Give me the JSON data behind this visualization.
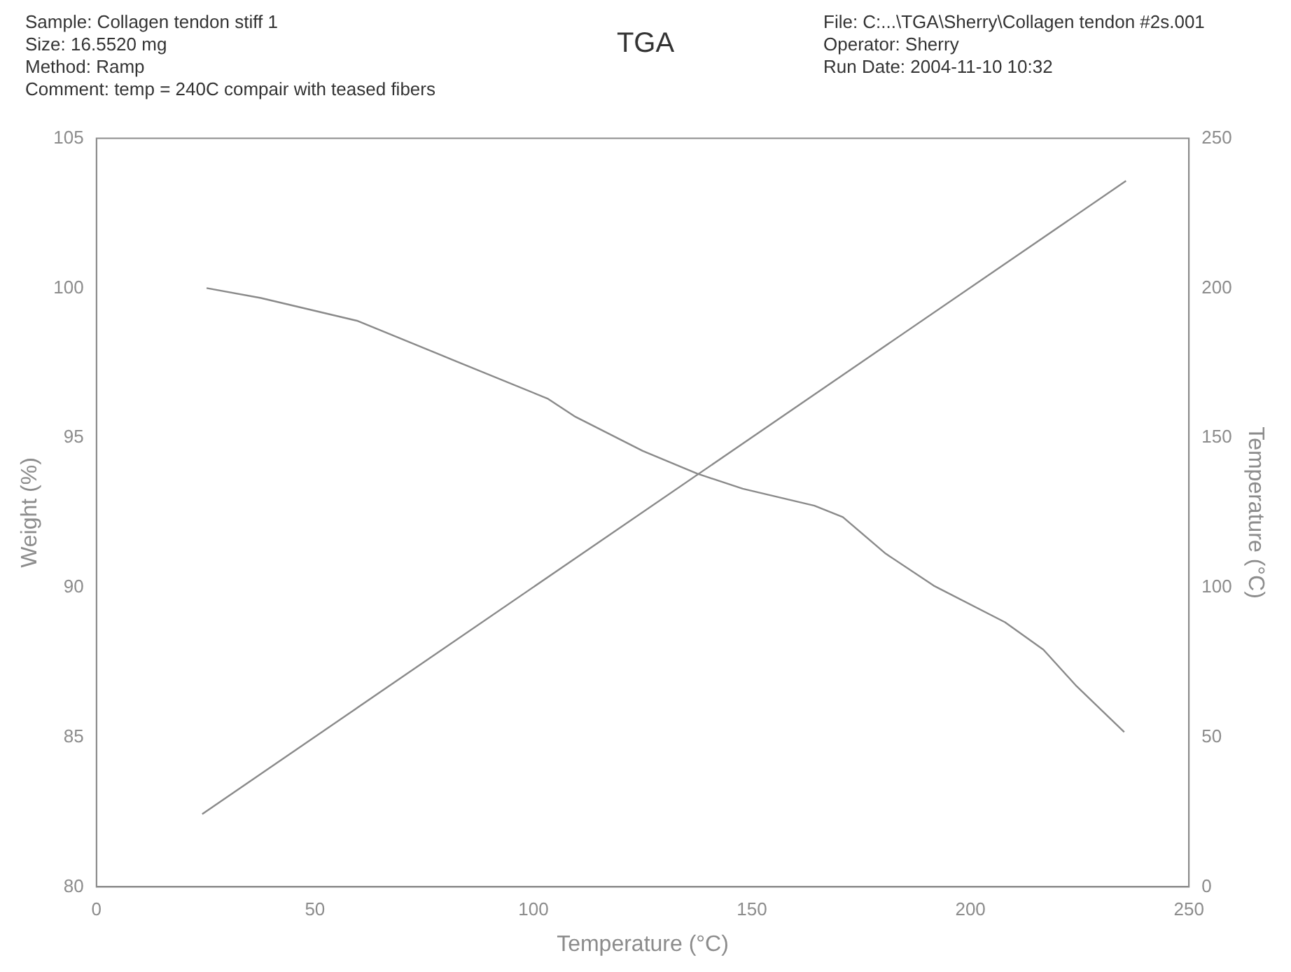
{
  "chart_data": {
    "type": "line",
    "title": "TGA",
    "xlabel": "Temperature (°C)",
    "ylabel": "Weight (%)",
    "y2label": "Temperature (°C)",
    "annotations": [
      "Sample: Collagen tendon stiff 1",
      "Size:  16.5520 mg",
      "Method: Ramp",
      "Comment: temp = 240C compair with teased fibers",
      "File: C:...\\TGA\\Sherry\\Collagen tendon #2s.001",
      "Operator: Sherry",
      "Run Date: 2004-11-10 10:32"
    ],
    "xlim": [
      0,
      250
    ],
    "xticks": [
      0,
      50,
      100,
      150,
      200,
      250
    ],
    "ylim": [
      80,
      105
    ],
    "yticks": [
      80,
      85,
      90,
      95,
      100,
      105
    ],
    "y2lim": [
      0,
      250
    ],
    "y2ticks": [
      0,
      50,
      100,
      150,
      200,
      250
    ],
    "grid": false,
    "marker": "none",
    "line_style": "solid",
    "series": [
      {
        "color": "#8a8a8a",
        "x": [
          25.2,
          37.6,
          59.6,
          81.4,
          103.2,
          109.6,
          125,
          137.5,
          147.9,
          164.3,
          170.8,
          180.6,
          191.6,
          207.9,
          216.7,
          224.3,
          235.2
        ],
        "values": [
          100.0,
          99.67,
          98.91,
          97.61,
          96.31,
          95.7,
          94.56,
          93.8,
          93.3,
          92.73,
          92.35,
          91.13,
          90.06,
          88.84,
          87.92,
          86.7,
          85.17
        ]
      },
      {
        "color": "#8a8a8a",
        "axis": "y2",
        "x": [
          24.2,
          235.6
        ],
        "values": [
          24.3,
          235.8
        ]
      }
    ]
  }
}
